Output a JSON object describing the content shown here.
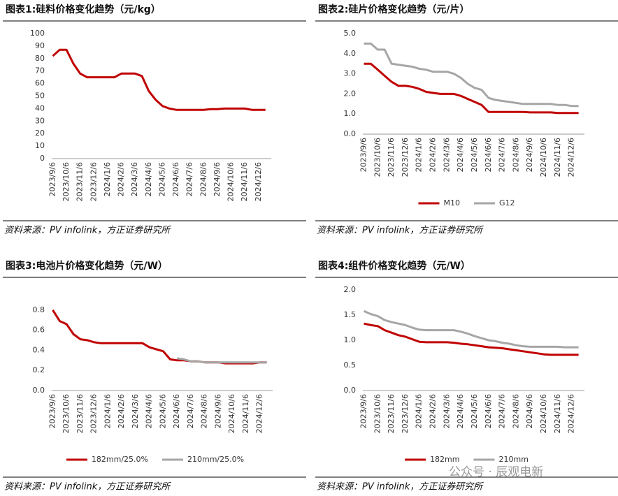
{
  "chart_data": [
    {
      "type": "line",
      "title": "图表1:硅料价格变化趋势（元/kg）",
      "source": "资料来源：PV infolink，方正证券研究所",
      "categories": [
        "2023/9/6",
        null,
        "2023/10/6",
        null,
        "2023/11/6",
        null,
        "2023/12/6",
        null,
        "2024/1/6",
        null,
        "2024/2/6",
        null,
        "2024/3/6",
        null,
        "2024/4/6",
        null,
        "2024/5/6",
        null,
        "2024/6/6",
        null,
        "2024/7/6",
        null,
        "2024/8/6",
        null,
        "2024/9/6",
        null,
        "2024/10/6",
        null,
        "2024/11/6",
        null,
        "2024/12/6",
        null
      ],
      "values": [
        82,
        87,
        87,
        76,
        68,
        65,
        65,
        65,
        65,
        65,
        68,
        68,
        68,
        66,
        54,
        47,
        42,
        40,
        39,
        39,
        39,
        39,
        39,
        39.5,
        39.5,
        40,
        40,
        40,
        40,
        39,
        39,
        39
      ],
      "color": "#c00000",
      "ylim": [
        0,
        100
      ],
      "yticks": [
        0,
        10,
        20,
        30,
        40,
        50,
        60,
        70,
        80,
        90,
        100
      ]
    },
    {
      "type": "line",
      "title": "图表2:硅片价格变化趋势（元/片）",
      "source": "资料来源：PV infolink，方正证券研究所",
      "categories": [
        "2023/9/6",
        null,
        "2023/10/6",
        null,
        "2023/11/6",
        null,
        "2023/12/6",
        null,
        "2024/1/6",
        null,
        "2024/2/6",
        null,
        "2024/3/6",
        null,
        "2024/4/6",
        null,
        "2024/5/6",
        null,
        "2024/6/6",
        null,
        "2024/7/6",
        null,
        "2024/8/6",
        null,
        "2024/9/6",
        null,
        "2024/10/6",
        null,
        "2024/11/6",
        null,
        "2024/12/6",
        null
      ],
      "series": [
        {
          "name": "M10",
          "color": "#c00000",
          "values": [
            3.5,
            3.5,
            3.2,
            2.9,
            2.6,
            2.4,
            2.4,
            2.35,
            2.25,
            2.1,
            2.05,
            2.0,
            2.0,
            2.0,
            1.9,
            1.75,
            1.6,
            1.45,
            1.1,
            1.1,
            1.1,
            1.1,
            1.1,
            1.1,
            1.08,
            1.08,
            1.08,
            1.08,
            1.05,
            1.05,
            1.05,
            1.05
          ]
        },
        {
          "name": "G12",
          "color": "#a6a6a6",
          "values": [
            4.5,
            4.5,
            4.2,
            4.2,
            3.5,
            3.45,
            3.4,
            3.35,
            3.25,
            3.2,
            3.1,
            3.1,
            3.1,
            3.0,
            2.8,
            2.5,
            2.3,
            2.2,
            1.8,
            1.7,
            1.65,
            1.6,
            1.55,
            1.5,
            1.5,
            1.5,
            1.5,
            1.5,
            1.45,
            1.45,
            1.4,
            1.4
          ]
        }
      ],
      "ylim": [
        0,
        5
      ],
      "yticks": [
        {
          "value": 0,
          "label": "0.0"
        },
        {
          "value": 1,
          "label": "1.0"
        },
        {
          "value": 2,
          "label": "2.0"
        },
        {
          "value": 3,
          "label": "3.0"
        },
        {
          "value": 4,
          "label": "4.0"
        },
        {
          "value": 5,
          "label": "5.0"
        }
      ]
    },
    {
      "type": "line",
      "title": "图表3:电池片价格变化趋势（元/W）",
      "source": "资料来源：PV infolink，方正证券研究所",
      "categories": [
        "2023/9/6",
        null,
        "2023/10/6",
        null,
        "2023/11/6",
        null,
        "2023/12/6",
        null,
        "2024/1/6",
        null,
        "2024/2/6",
        null,
        "2024/3/6",
        null,
        "2024/4/6",
        null,
        "2024/5/6",
        null,
        "2024/6/6",
        null,
        "2024/7/6",
        null,
        "2024/8/6",
        null,
        "2024/9/6",
        null,
        "2024/10/6",
        null,
        "2024/11/6",
        null,
        "2024/12/6",
        null
      ],
      "series": [
        {
          "name": "182mm/25.0%",
          "color": "#c00000",
          "values": [
            0.8,
            0.69,
            0.66,
            0.56,
            0.51,
            0.5,
            0.48,
            0.47,
            0.47,
            0.47,
            0.47,
            0.47,
            0.47,
            0.47,
            0.43,
            0.41,
            0.39,
            0.31,
            0.3,
            0.3,
            0.29,
            0.29,
            0.28,
            0.28,
            0.28,
            0.27,
            0.27,
            0.27,
            0.27,
            0.27,
            0.28,
            0.28
          ]
        },
        {
          "name": "210mm/25.0%",
          "color": "#a6a6a6",
          "values": [
            null,
            null,
            null,
            null,
            null,
            null,
            null,
            null,
            null,
            null,
            null,
            null,
            null,
            null,
            null,
            null,
            null,
            null,
            0.32,
            0.31,
            0.29,
            0.29,
            0.28,
            0.28,
            0.28,
            0.28,
            0.28,
            0.28,
            0.28,
            0.28,
            0.28,
            0.28
          ]
        }
      ],
      "ylim": [
        0,
        1
      ],
      "yticks": [
        {
          "value": 0,
          "label": "0.0"
        },
        0.2,
        0.4,
        0.6,
        0.8
      ]
    },
    {
      "type": "line",
      "title": "图表4:组件价格变化趋势（元/W）",
      "source": "资料来源：PV infolink，方正证券研究所",
      "categories": [
        "2023/9/6",
        null,
        "2023/10/6",
        null,
        "2023/11/6",
        null,
        "2023/12/6",
        null,
        "2024/1/6",
        null,
        "2024/2/6",
        null,
        "2024/3/6",
        null,
        "2024/4/6",
        null,
        "2024/5/6",
        null,
        "2024/6/6",
        null,
        "2024/7/6",
        null,
        "2024/8/6",
        null,
        "2024/9/6",
        null,
        "2024/10/6",
        null,
        "2024/11/6",
        null,
        "2024/12/6",
        null
      ],
      "series": [
        {
          "name": "182mm",
          "color": "#c00000",
          "values": [
            1.33,
            1.3,
            1.28,
            1.2,
            1.15,
            1.1,
            1.07,
            1.02,
            0.97,
            0.96,
            0.96,
            0.96,
            0.96,
            0.95,
            0.93,
            0.92,
            0.9,
            0.88,
            0.86,
            0.85,
            0.84,
            0.82,
            0.8,
            0.78,
            0.76,
            0.74,
            0.72,
            0.71,
            0.71,
            0.71,
            0.71,
            0.71
          ]
        },
        {
          "name": "210mm",
          "color": "#a6a6a6",
          "values": [
            1.58,
            1.52,
            1.48,
            1.4,
            1.36,
            1.33,
            1.3,
            1.25,
            1.21,
            1.2,
            1.2,
            1.2,
            1.2,
            1.2,
            1.17,
            1.13,
            1.08,
            1.04,
            1.0,
            0.98,
            0.95,
            0.93,
            0.9,
            0.88,
            0.87,
            0.87,
            0.87,
            0.87,
            0.87,
            0.86,
            0.86,
            0.86
          ]
        }
      ],
      "ylim": [
        0,
        2
      ],
      "yticks": [
        {
          "value": 0,
          "label": "0.0"
        },
        0.5,
        {
          "value": 1,
          "label": "1.0"
        },
        1.5,
        {
          "value": 2,
          "label": "2.0"
        }
      ]
    }
  ],
  "watermark": "公众号 · 辰观电新"
}
